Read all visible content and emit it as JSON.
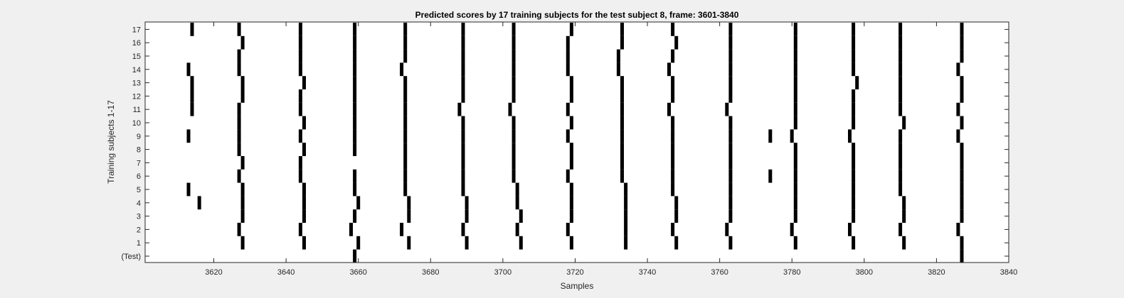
{
  "chart_data": {
    "type": "raster",
    "title": "Predicted scores by 17 training subjects for the test subject 8, frame: 3601-3840",
    "xlabel": "Samples",
    "ylabel": "Training subjects 1-17",
    "xlim": [
      3601,
      3840
    ],
    "xticks": [
      3620,
      3640,
      3660,
      3680,
      3700,
      3720,
      3740,
      3760,
      3780,
      3800,
      3820,
      3840
    ],
    "rows": [
      "(Test)",
      "1",
      "2",
      "3",
      "4",
      "5",
      "6",
      "7",
      "8",
      "9",
      "10",
      "11",
      "12",
      "13",
      "14",
      "15",
      "16",
      "17"
    ],
    "marks": {
      "(Test)": [
        3659,
        3827
      ],
      "1": [
        3628,
        3645,
        3660,
        3674,
        3690,
        3705,
        3719,
        3734,
        3748,
        3763,
        3781,
        3797,
        3811,
        3827
      ],
      "2": [
        3627,
        3644,
        3658,
        3672,
        3689,
        3704,
        3718,
        3734,
        3747,
        3762,
        3780,
        3796,
        3810,
        3826
      ],
      "3": [
        3628,
        3645,
        3659,
        3674,
        3690,
        3705,
        3719,
        3734,
        3748,
        3763,
        3781,
        3797,
        3811,
        3827
      ],
      "4": [
        3616,
        3628,
        3645,
        3660,
        3674,
        3690,
        3704,
        3719,
        3734,
        3748,
        3763,
        3781,
        3797,
        3811,
        3827
      ],
      "5": [
        3613,
        3628,
        3645,
        3659,
        3673,
        3689,
        3704,
        3719,
        3734,
        3747,
        3763,
        3781,
        3797,
        3810,
        3827
      ],
      "6": [
        3627,
        3644,
        3659,
        3673,
        3689,
        3703,
        3718,
        3733,
        3747,
        3763,
        3774,
        3781,
        3797,
        3810,
        3827
      ],
      "7": [
        3628,
        3644,
        3673,
        3689,
        3703,
        3719,
        3733,
        3747,
        3763,
        3781,
        3797,
        3810,
        3827
      ],
      "8": [
        3627,
        3645,
        3659,
        3673,
        3689,
        3703,
        3719,
        3733,
        3747,
        3763,
        3781,
        3797,
        3810,
        3827
      ],
      "9": [
        3613,
        3627,
        3644,
        3659,
        3673,
        3689,
        3703,
        3718,
        3733,
        3747,
        3763,
        3774,
        3780,
        3796,
        3810,
        3826
      ],
      "10": [
        3627,
        3645,
        3659,
        3673,
        3689,
        3703,
        3719,
        3733,
        3747,
        3763,
        3781,
        3797,
        3811,
        3827
      ],
      "11": [
        3614,
        3627,
        3644,
        3659,
        3673,
        3688,
        3702,
        3718,
        3733,
        3746,
        3762,
        3781,
        3797,
        3810,
        3826
      ],
      "12": [
        3614,
        3628,
        3644,
        3659,
        3673,
        3689,
        3703,
        3719,
        3733,
        3747,
        3763,
        3781,
        3797,
        3810,
        3827
      ],
      "13": [
        3614,
        3628,
        3645,
        3659,
        3673,
        3689,
        3703,
        3719,
        3733,
        3747,
        3763,
        3781,
        3798,
        3810,
        3827
      ],
      "14": [
        3613,
        3627,
        3644,
        3659,
        3672,
        3689,
        3703,
        3718,
        3732,
        3746,
        3763,
        3781,
        3797,
        3810,
        3826
      ],
      "15": [
        3627,
        3644,
        3659,
        3673,
        3689,
        3703,
        3718,
        3732,
        3747,
        3763,
        3781,
        3797,
        3810,
        3827
      ],
      "16": [
        3628,
        3644,
        3659,
        3673,
        3689,
        3703,
        3718,
        3733,
        3748,
        3763,
        3781,
        3797,
        3810,
        3827
      ],
      "17": [
        3614,
        3627,
        3644,
        3659,
        3673,
        3689,
        3703,
        3719,
        3733,
        3747,
        3763,
        3781,
        3797,
        3810,
        3827
      ]
    },
    "grid": false,
    "legend": "none",
    "colors": {
      "mark": "#000000",
      "axes_bg": "#ffffff",
      "figure_bg": "#f0f0f0",
      "axis": "#262626"
    }
  }
}
